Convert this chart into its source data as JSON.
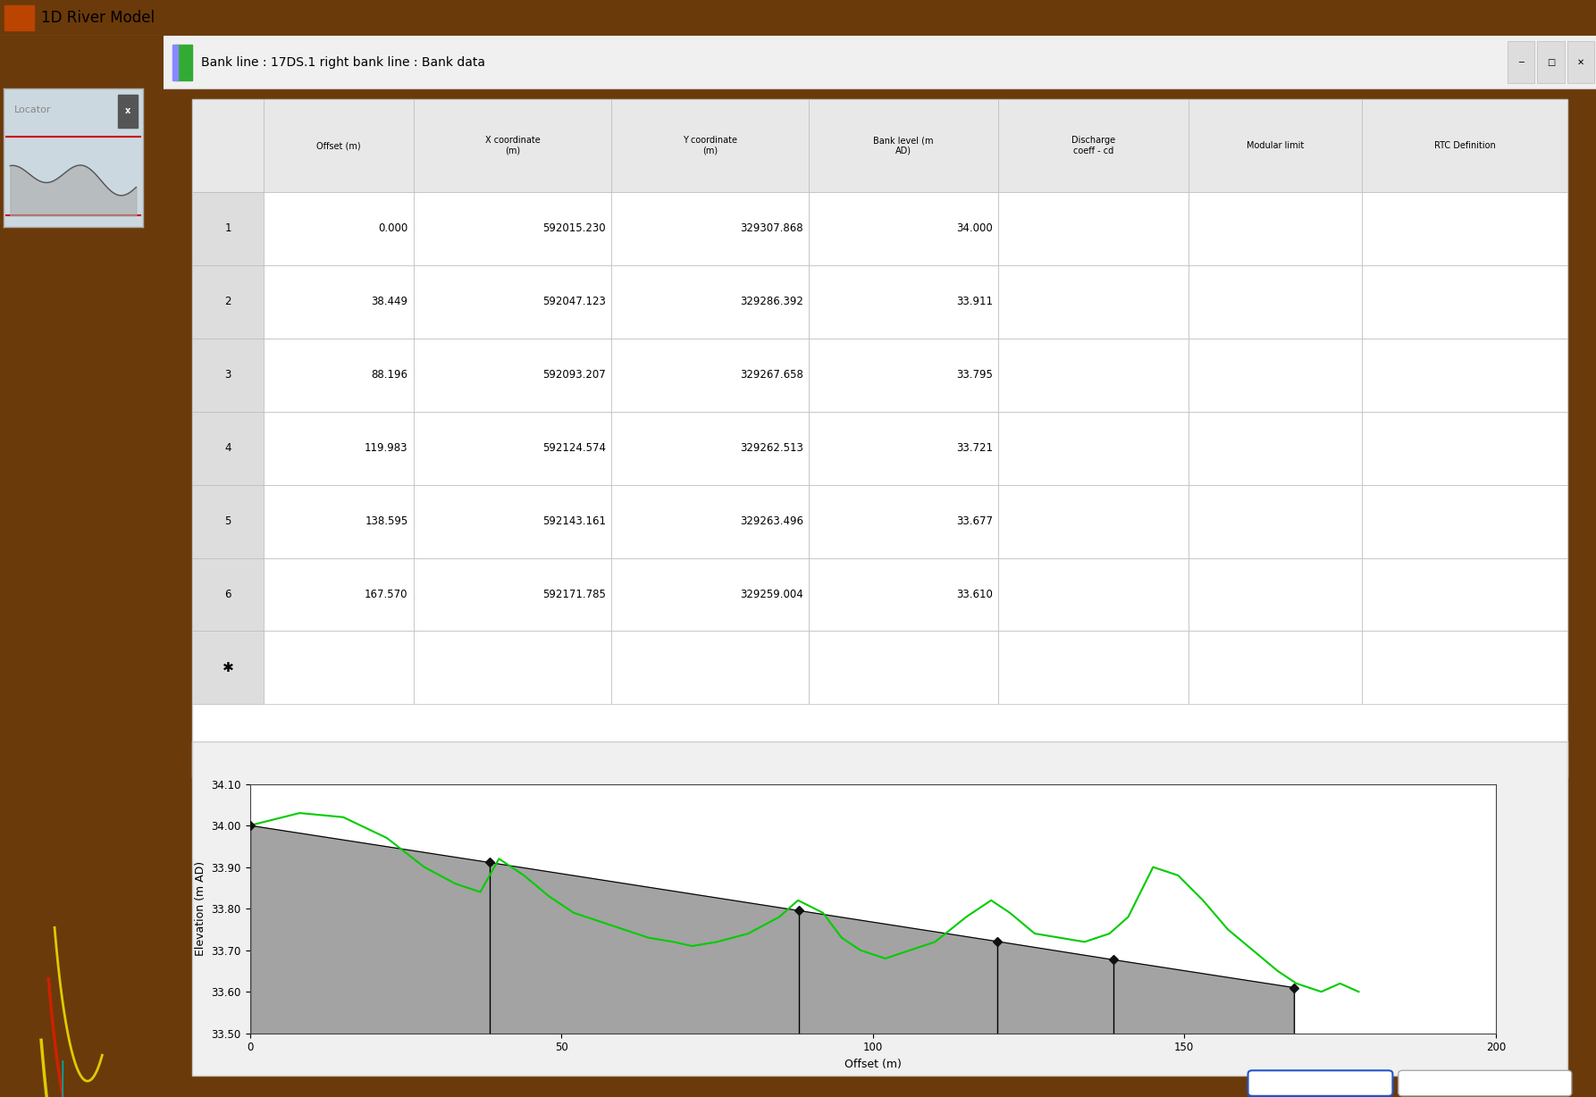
{
  "title": "1D River Model",
  "dialog_title": "Bank line : 17DS.1 right bank line : Bank data",
  "table_headers": [
    "",
    "Offset (m)",
    "X coordinate\n(m)",
    "Y coordinate\n(m)",
    "Bank level (m\nAD)",
    "Discharge\ncoeff - cd",
    "Modular limit",
    "RTC Definition"
  ],
  "table_rows": [
    [
      1,
      0.0,
      592015.23,
      329307.868,
      34.0,
      "",
      "",
      ""
    ],
    [
      2,
      38.449,
      592047.123,
      329286.392,
      33.911,
      "",
      "",
      ""
    ],
    [
      3,
      88.196,
      592093.207,
      329267.658,
      33.795,
      "",
      "",
      ""
    ],
    [
      4,
      119.983,
      592124.574,
      329262.513,
      33.721,
      "",
      "",
      ""
    ],
    [
      5,
      138.595,
      592143.161,
      329263.496,
      33.677,
      "",
      "",
      ""
    ],
    [
      6,
      167.57,
      592171.785,
      329259.004,
      33.61,
      "",
      "",
      ""
    ]
  ],
  "bank_offsets": [
    0.0,
    38.449,
    88.196,
    119.983,
    138.595,
    167.57
  ],
  "bank_levels": [
    34.0,
    33.911,
    33.795,
    33.721,
    33.677,
    33.61
  ],
  "ground_model_x": [
    0,
    8,
    15,
    22,
    28,
    33,
    37,
    40,
    44,
    48,
    52,
    56,
    60,
    64,
    68,
    71,
    75,
    80,
    85,
    88,
    92,
    95,
    98,
    102,
    106,
    110,
    115,
    119,
    122,
    126,
    130,
    134,
    138,
    141,
    145,
    149,
    153,
    157,
    161,
    165,
    168,
    172,
    175,
    178
  ],
  "ground_model_y": [
    34.0,
    34.03,
    34.02,
    33.97,
    33.9,
    33.86,
    33.84,
    33.92,
    33.88,
    33.83,
    33.79,
    33.77,
    33.75,
    33.73,
    33.72,
    33.71,
    33.72,
    33.74,
    33.78,
    33.82,
    33.79,
    33.73,
    33.7,
    33.68,
    33.7,
    33.72,
    33.78,
    33.82,
    33.79,
    33.74,
    33.73,
    33.72,
    33.74,
    33.78,
    33.9,
    33.88,
    33.82,
    33.75,
    33.7,
    33.65,
    33.62,
    33.6,
    33.62,
    33.6
  ],
  "ylim": [
    33.5,
    34.1
  ],
  "xlim": [
    0,
    200
  ],
  "yticks": [
    33.5,
    33.6,
    33.7,
    33.8,
    33.9,
    34.0,
    34.1
  ],
  "xticks": [
    0,
    50,
    100,
    150,
    200
  ],
  "xlabel": "Offset (m)",
  "ylabel": "Elevation (m AD)",
  "bg_color_map": "#6B3A0A",
  "bg_color_dialog": "#f0f0f0",
  "fill_color": "#999999",
  "line_color_green": "#00cc00",
  "locator_bg": "#dde8f0",
  "col_widths": [
    0.045,
    0.095,
    0.125,
    0.125,
    0.12,
    0.12,
    0.11,
    0.13
  ]
}
